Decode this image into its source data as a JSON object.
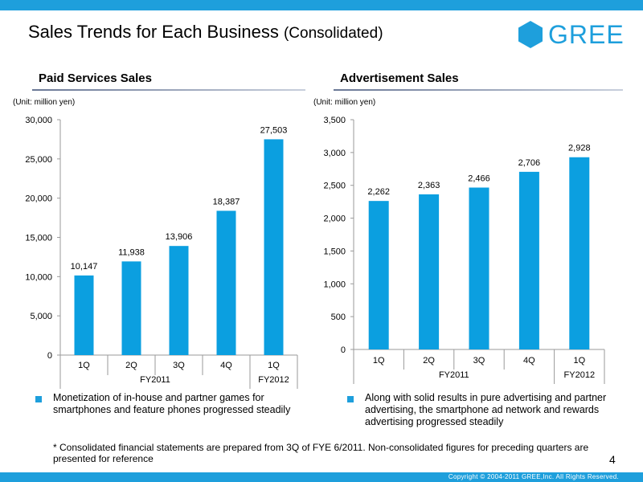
{
  "header": {
    "title": "Sales Trends for Each Business",
    "title_sub": "(Consolidated)",
    "logo_text": "GREE"
  },
  "colors": {
    "brand": "#1e9fdc",
    "bar": "#0b9fe0"
  },
  "chart_data": [
    {
      "type": "bar",
      "title": "Paid Services Sales",
      "unit": "(Unit: million yen)",
      "categories": [
        "1Q",
        "2Q",
        "3Q",
        "4Q",
        "1Q"
      ],
      "groups": [
        {
          "label": "FY2011",
          "categories": [
            "1Q",
            "2Q",
            "3Q",
            "4Q"
          ]
        },
        {
          "label": "FY2012",
          "categories": [
            "1Q"
          ]
        }
      ],
      "values": [
        10147,
        11938,
        13906,
        18387,
        27503
      ],
      "value_labels": [
        "10,147",
        "11,938",
        "13,906",
        "18,387",
        "27,503"
      ],
      "yticks": [
        "0",
        "5,000",
        "10,000",
        "15,000",
        "20,000",
        "25,000",
        "30,000"
      ],
      "ylim": [
        0,
        30000
      ]
    },
    {
      "type": "bar",
      "title": "Advertisement Sales",
      "unit": "(Unit: million yen)",
      "categories": [
        "1Q",
        "2Q",
        "3Q",
        "4Q",
        "1Q"
      ],
      "groups": [
        {
          "label": "FY2011",
          "categories": [
            "1Q",
            "2Q",
            "3Q",
            "4Q"
          ]
        },
        {
          "label": "FY2012",
          "categories": [
            "1Q"
          ]
        }
      ],
      "values": [
        2262,
        2363,
        2466,
        2706,
        2928
      ],
      "value_labels": [
        "2,262",
        "2,363",
        "2,466",
        "2,706",
        "2,928"
      ],
      "yticks": [
        "0",
        "500",
        "1,000",
        "1,500",
        "2,000",
        "2,500",
        "3,000",
        "3,500"
      ],
      "ylim": [
        0,
        3500
      ]
    }
  ],
  "bullets": {
    "left": "Monetization of in-house and partner games for smartphones and feature phones progressed steadily",
    "right": "Along with solid results in pure advertising and partner advertising, the smartphone ad network and rewards advertising progressed steadily"
  },
  "footnote": "* Consolidated financial statements are prepared from 3Q of FYE 6/2011. Non-consolidated figures for preceding quarters are presented for reference",
  "page_number": "4",
  "copyright": "Copyright © 2004-2011 GREE,Inc. All Rights Reserved."
}
